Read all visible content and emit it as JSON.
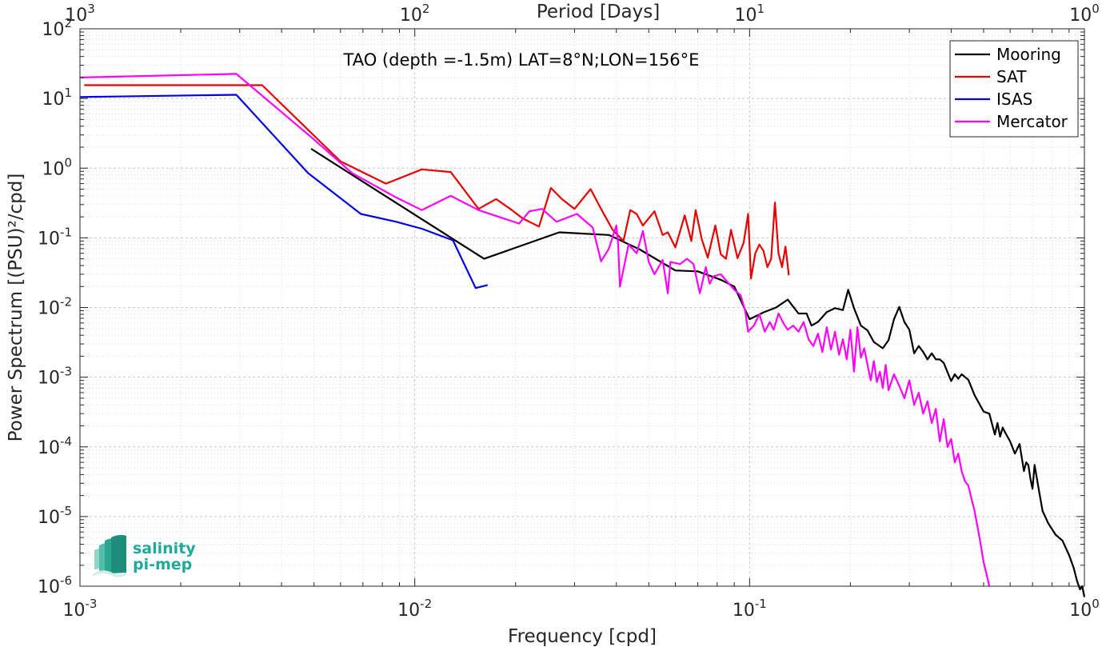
{
  "chart_data": {
    "type": "line",
    "title": "",
    "annotation": "TAO (depth =-1.5m) LAT=8°N;LON=156°E",
    "xlabel": "Frequency [cpd]",
    "ylabel": "Power Spectrum [(PSU)²/cpd]",
    "top_xlabel": "Period [Days]",
    "x_scale": "log",
    "y_scale": "log",
    "xlim": [
      0.001,
      1
    ],
    "ylim": [
      1e-06,
      100
    ],
    "grid": true,
    "legend_position": "top-right",
    "x_ticks": [
      {
        "base": "10",
        "exp": "-3"
      },
      {
        "base": "10",
        "exp": "-2"
      },
      {
        "base": "10",
        "exp": "-1"
      },
      {
        "base": "10",
        "exp": "0"
      }
    ],
    "top_ticks": [
      {
        "base": "10",
        "exp": "3"
      },
      {
        "base": "10",
        "exp": "2"
      },
      {
        "base": "10",
        "exp": "1"
      },
      {
        "base": "10",
        "exp": "0"
      }
    ],
    "y_ticks": [
      {
        "base": "10",
        "exp": "2"
      },
      {
        "base": "10",
        "exp": "1"
      },
      {
        "base": "10",
        "exp": "0"
      },
      {
        "base": "10",
        "exp": "-1"
      },
      {
        "base": "10",
        "exp": "-2"
      },
      {
        "base": "10",
        "exp": "-3"
      },
      {
        "base": "10",
        "exp": "-4"
      },
      {
        "base": "10",
        "exp": "-5"
      },
      {
        "base": "10",
        "exp": "-6"
      }
    ],
    "series": [
      {
        "name": "Mooring",
        "color": "#000000",
        "points": [
          [
            0.0049,
            1.9
          ],
          [
            0.0161,
            0.05
          ],
          [
            0.027,
            0.12
          ],
          [
            0.038,
            0.11
          ],
          [
            0.047,
            0.068
          ],
          [
            0.06,
            0.034
          ],
          [
            0.07,
            0.033
          ],
          [
            0.082,
            0.025
          ],
          [
            0.09,
            0.02
          ],
          [
            0.1,
            0.0068
          ],
          [
            0.11,
            0.0085
          ],
          [
            0.12,
            0.01
          ],
          [
            0.13,
            0.013
          ],
          [
            0.14,
            0.0082
          ],
          [
            0.148,
            0.0082
          ],
          [
            0.153,
            0.0055
          ],
          [
            0.16,
            0.0062
          ],
          [
            0.17,
            0.0086
          ],
          [
            0.18,
            0.0098
          ],
          [
            0.19,
            0.0092
          ],
          [
            0.197,
            0.018
          ],
          [
            0.205,
            0.0098
          ],
          [
            0.215,
            0.0055
          ],
          [
            0.225,
            0.0047
          ],
          [
            0.235,
            0.0032
          ],
          [
            0.25,
            0.0026
          ],
          [
            0.26,
            0.0034
          ],
          [
            0.27,
            0.0068
          ],
          [
            0.28,
            0.0102
          ],
          [
            0.29,
            0.0062
          ],
          [
            0.3,
            0.0048
          ],
          [
            0.31,
            0.0022
          ],
          [
            0.32,
            0.0028
          ],
          [
            0.33,
            0.0023
          ],
          [
            0.34,
            0.0018
          ],
          [
            0.35,
            0.0022
          ],
          [
            0.36,
            0.0018
          ],
          [
            0.37,
            0.0018
          ],
          [
            0.38,
            0.0016
          ],
          [
            0.4,
            0.00088
          ],
          [
            0.41,
            0.0011
          ],
          [
            0.42,
            0.00095
          ],
          [
            0.43,
            0.0011
          ],
          [
            0.45,
            0.00092
          ],
          [
            0.47,
            0.00055
          ],
          [
            0.5,
            0.00032
          ],
          [
            0.52,
            0.0003
          ],
          [
            0.54,
            0.00015
          ],
          [
            0.55,
            0.00022
          ],
          [
            0.56,
            0.00014
          ],
          [
            0.57,
            0.00019
          ],
          [
            0.58,
            0.00016
          ],
          [
            0.6,
            0.00012
          ],
          [
            0.62,
            8e-05
          ],
          [
            0.64,
            0.00011
          ],
          [
            0.66,
            4.5e-05
          ],
          [
            0.67,
            6e-05
          ],
          [
            0.68,
            5.5e-05
          ],
          [
            0.69,
            3.5e-05
          ],
          [
            0.7,
            2.5e-05
          ],
          [
            0.71,
            5.5e-05
          ],
          [
            0.73,
            2.5e-05
          ],
          [
            0.75,
            1.2e-05
          ],
          [
            0.78,
            8e-06
          ],
          [
            0.82,
            5.5e-06
          ],
          [
            0.86,
            4.5e-06
          ],
          [
            0.9,
            2.8e-06
          ],
          [
            0.93,
            1.8e-06
          ],
          [
            0.95,
            1.2e-06
          ],
          [
            0.97,
            9e-07
          ],
          [
            0.985,
            1e-06
          ],
          [
            1.0,
            7e-07
          ]
        ]
      },
      {
        "name": "SAT",
        "color": "#e60000",
        "points": [
          [
            0.00103,
            15.5
          ],
          [
            0.0035,
            15.5
          ],
          [
            0.006,
            1.25
          ],
          [
            0.0082,
            0.6
          ],
          [
            0.0105,
            0.96
          ],
          [
            0.0128,
            0.88
          ],
          [
            0.0155,
            0.26
          ],
          [
            0.0175,
            0.36
          ],
          [
            0.0195,
            0.25
          ],
          [
            0.021,
            0.19
          ],
          [
            0.0235,
            0.145
          ],
          [
            0.0255,
            0.52
          ],
          [
            0.0275,
            0.36
          ],
          [
            0.03,
            0.26
          ],
          [
            0.0335,
            0.5
          ],
          [
            0.036,
            0.26
          ],
          [
            0.039,
            0.13
          ],
          [
            0.042,
            0.09
          ],
          [
            0.044,
            0.25
          ],
          [
            0.046,
            0.22
          ],
          [
            0.048,
            0.15
          ],
          [
            0.052,
            0.24
          ],
          [
            0.055,
            0.11
          ],
          [
            0.057,
            0.12
          ],
          [
            0.06,
            0.073
          ],
          [
            0.064,
            0.21
          ],
          [
            0.067,
            0.09
          ],
          [
            0.069,
            0.25
          ],
          [
            0.072,
            0.095
          ],
          [
            0.075,
            0.052
          ],
          [
            0.079,
            0.15
          ],
          [
            0.082,
            0.058
          ],
          [
            0.085,
            0.05
          ],
          [
            0.088,
            0.13
          ],
          [
            0.092,
            0.051
          ],
          [
            0.096,
            0.085
          ],
          [
            0.099,
            0.22
          ],
          [
            0.101,
            0.026
          ],
          [
            0.104,
            0.06
          ],
          [
            0.107,
            0.08
          ],
          [
            0.11,
            0.065
          ],
          [
            0.113,
            0.038
          ],
          [
            0.116,
            0.05
          ],
          [
            0.119,
            0.32
          ],
          [
            0.122,
            0.06
          ],
          [
            0.125,
            0.038
          ],
          [
            0.128,
            0.075
          ],
          [
            0.131,
            0.029
          ]
        ]
      },
      {
        "name": "ISAS",
        "color": "#0000e6",
        "points": [
          [
            0.001,
            10.5
          ],
          [
            0.00293,
            11.3
          ],
          [
            0.0048,
            0.85
          ],
          [
            0.0069,
            0.22
          ],
          [
            0.0088,
            0.17
          ],
          [
            0.0105,
            0.135
          ],
          [
            0.013,
            0.092
          ],
          [
            0.0152,
            0.019
          ],
          [
            0.0165,
            0.021
          ]
        ]
      },
      {
        "name": "Mercator",
        "color": "#ff00ff",
        "points": [
          [
            0.001,
            20
          ],
          [
            0.00293,
            22.5
          ],
          [
            0.0049,
            2.8
          ],
          [
            0.0065,
            0.85
          ],
          [
            0.0088,
            0.38
          ],
          [
            0.0105,
            0.25
          ],
          [
            0.0128,
            0.4
          ],
          [
            0.0155,
            0.25
          ],
          [
            0.0178,
            0.2
          ],
          [
            0.0205,
            0.16
          ],
          [
            0.022,
            0.24
          ],
          [
            0.024,
            0.26
          ],
          [
            0.0265,
            0.17
          ],
          [
            0.0305,
            0.22
          ],
          [
            0.034,
            0.14
          ],
          [
            0.036,
            0.046
          ],
          [
            0.038,
            0.07
          ],
          [
            0.04,
            0.15
          ],
          [
            0.0405,
            0.08
          ],
          [
            0.041,
            0.02
          ],
          [
            0.0435,
            0.08
          ],
          [
            0.046,
            0.06
          ],
          [
            0.048,
            0.125
          ],
          [
            0.05,
            0.045
          ],
          [
            0.052,
            0.03
          ],
          [
            0.055,
            0.048
          ],
          [
            0.057,
            0.016
          ],
          [
            0.058,
            0.045
          ],
          [
            0.062,
            0.042
          ],
          [
            0.065,
            0.05
          ],
          [
            0.068,
            0.042
          ],
          [
            0.071,
            0.016
          ],
          [
            0.074,
            0.038
          ],
          [
            0.076,
            0.022
          ],
          [
            0.078,
            0.028
          ],
          [
            0.082,
            0.03
          ],
          [
            0.086,
            0.023
          ],
          [
            0.09,
            0.018
          ],
          [
            0.094,
            0.015
          ],
          [
            0.097,
            0.009
          ],
          [
            0.099,
            0.0045
          ],
          [
            0.103,
            0.0055
          ],
          [
            0.107,
            0.008
          ],
          [
            0.111,
            0.0045
          ],
          [
            0.115,
            0.0062
          ],
          [
            0.118,
            0.0048
          ],
          [
            0.122,
            0.0082
          ],
          [
            0.126,
            0.006
          ],
          [
            0.13,
            0.0048
          ],
          [
            0.135,
            0.0055
          ],
          [
            0.14,
            0.0045
          ],
          [
            0.145,
            0.0062
          ],
          [
            0.15,
            0.0035
          ],
          [
            0.155,
            0.0028
          ],
          [
            0.16,
            0.0042
          ],
          [
            0.165,
            0.0023
          ],
          [
            0.17,
            0.0052
          ],
          [
            0.175,
            0.0025
          ],
          [
            0.18,
            0.0045
          ],
          [
            0.185,
            0.0021
          ],
          [
            0.19,
            0.0035
          ],
          [
            0.195,
            0.0018
          ],
          [
            0.2,
            0.0048
          ],
          [
            0.205,
            0.0012
          ],
          [
            0.21,
            0.0052
          ],
          [
            0.215,
            0.0019
          ],
          [
            0.22,
            0.0026
          ],
          [
            0.225,
            0.0015
          ],
          [
            0.23,
            0.0009
          ],
          [
            0.235,
            0.0017
          ],
          [
            0.24,
            0.00085
          ],
          [
            0.245,
            0.0012
          ],
          [
            0.25,
            0.0007
          ],
          [
            0.255,
            0.0015
          ],
          [
            0.26,
            0.00065
          ],
          [
            0.27,
            0.0011
          ],
          [
            0.28,
            0.00075
          ],
          [
            0.29,
            0.0005
          ],
          [
            0.3,
            0.0009
          ],
          [
            0.31,
            0.0004
          ],
          [
            0.32,
            0.0006
          ],
          [
            0.33,
            0.0003
          ],
          [
            0.34,
            0.00045
          ],
          [
            0.35,
            0.00022
          ],
          [
            0.36,
            0.00035
          ],
          [
            0.37,
            0.00012
          ],
          [
            0.38,
            0.00025
          ],
          [
            0.39,
            0.0001
          ],
          [
            0.4,
            0.00013
          ],
          [
            0.41,
            6e-05
          ],
          [
            0.42,
            8e-05
          ],
          [
            0.43,
            4.5e-05
          ],
          [
            0.44,
            3.2e-05
          ],
          [
            0.45,
            2.8e-05
          ],
          [
            0.46,
            1.8e-05
          ],
          [
            0.47,
            1.2e-05
          ],
          [
            0.48,
            7e-06
          ],
          [
            0.49,
            4e-06
          ],
          [
            0.5,
            2.2e-06
          ],
          [
            0.51,
            1.5e-06
          ],
          [
            0.52,
            1e-06
          ]
        ]
      }
    ]
  },
  "logo": {
    "line1": "salinity",
    "line2": "pi-mep"
  }
}
